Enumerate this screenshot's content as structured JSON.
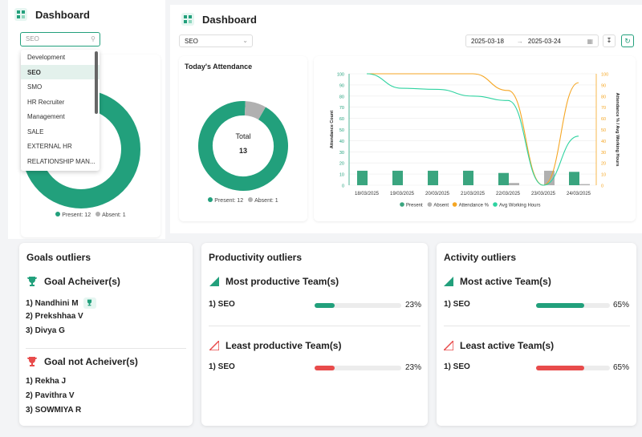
{
  "left": {
    "title": "Dashboard",
    "search_value": "SEO",
    "dropdown": [
      "Development",
      "SEO",
      "SMO",
      "HR Recruiter",
      "Management",
      "SALE",
      "EXTERNAL HR",
      "RELATIONSHIP MAN..."
    ],
    "selected_index": 1,
    "legend": "Present: 12",
    "legend_absent": "Absent: 1"
  },
  "header": {
    "title": "Dashboard",
    "select_value": "SEO",
    "date_from": "2025-03-18",
    "date_to": "2025-03-24",
    "arrow": "→"
  },
  "attendance": {
    "title": "Today's Attendance",
    "center_label": "Total",
    "center_value": "13",
    "present": 12,
    "absent": 1,
    "legend_present": "Present: 12",
    "legend_absent": "Absent: 1"
  },
  "chart_data": {
    "type": "bar",
    "categories": [
      "18/03/2025",
      "19/03/2025",
      "20/03/2025",
      "21/03/2025",
      "22/03/2025",
      "23/03/2025",
      "24/03/2025"
    ],
    "ylabel": "Attendance Count",
    "y2label": "Attendance % / Avg Working Hours",
    "ylim": [
      0,
      100
    ],
    "y2lim": [
      0,
      100
    ],
    "yticks": [
      0,
      10,
      20,
      30,
      40,
      50,
      60,
      70,
      80,
      90,
      100
    ],
    "series": [
      {
        "name": "Present",
        "kind": "bar",
        "values": [
          13,
          13,
          13,
          13,
          11,
          0,
          12
        ],
        "color": "#3aa57f"
      },
      {
        "name": "Absent",
        "kind": "bar",
        "values": [
          0,
          0,
          0,
          0,
          2,
          13,
          1
        ],
        "color": "#b0b0b0"
      },
      {
        "name": "Attendance %",
        "kind": "line",
        "axis": "right",
        "values": [
          100,
          100,
          100,
          100,
          85,
          0,
          92
        ],
        "color": "#f5a623"
      },
      {
        "name": "Avg Working Hours",
        "kind": "line",
        "axis": "right",
        "values": [
          100,
          87,
          86,
          80,
          76,
          0,
          44
        ],
        "color": "#2ed3a0"
      }
    ],
    "legend_position": "bottom"
  },
  "goals": {
    "title": "Goals outliers",
    "achievers_title": "Goal Acheiver(s)",
    "achievers": [
      "1) Nandhini M",
      "2) Prekshhaa V",
      "3) Divya G"
    ],
    "non_achievers_title": "Goal not Acheiver(s)",
    "non_achievers": [
      "1) Rekha J",
      "2) Pavithra V",
      "3) SOWMIYA R"
    ]
  },
  "productivity": {
    "title": "Productivity outliers",
    "most_title": "Most productive Team(s)",
    "most_team": "1) SEO",
    "most_pct_value": 23,
    "most_pct": "23%",
    "least_title": "Least productive Team(s)",
    "least_team": "1) SEO",
    "least_pct_value": 23,
    "least_pct": "23%"
  },
  "activity": {
    "title": "Activity outliers",
    "most_title": "Most active Team(s)",
    "most_team": "1) SEO",
    "most_pct_value": 65,
    "most_pct": "65%",
    "least_title": "Least active Team(s)",
    "least_team": "1) SEO",
    "least_pct_value": 65,
    "least_pct": "65%"
  },
  "colors": {
    "green": "#22a07c",
    "red": "#e84b4b",
    "grey": "#b0b0b0",
    "orange": "#f5a623",
    "teal": "#2ed3a0"
  }
}
